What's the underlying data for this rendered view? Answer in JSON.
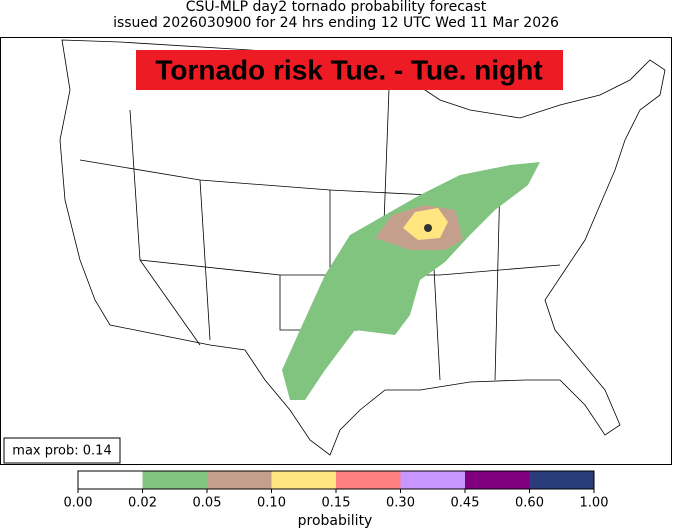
{
  "header": {
    "title": "CSU-MLP day2 tornado probability forecast",
    "subtitle": "issued 2026030900 for 24 hrs ending 12 UTC Wed 11 Mar 2026"
  },
  "banner": "Tornado risk Tue. - Tue. night",
  "max_prob": "max prob: 0.14",
  "colorbar": {
    "label": "probability",
    "ticks": [
      {
        "value": 0,
        "label": "0.00"
      },
      {
        "value": 0.02,
        "label": "0.02"
      },
      {
        "value": 0.05,
        "label": "0.05"
      },
      {
        "value": 0.1,
        "label": "0.10"
      },
      {
        "value": 0.15,
        "label": "0.15"
      },
      {
        "value": 0.3,
        "label": "0.30"
      },
      {
        "value": 0.45,
        "label": "0.45"
      },
      {
        "value": 0.6,
        "label": "0.60"
      },
      {
        "value": 1,
        "label": "1.00"
      }
    ],
    "colors": [
      "#ffffff",
      "#80c480",
      "#c4a08c",
      "#ffe680",
      "#ff8080",
      "#c896ff",
      "#800080",
      "#2a3d7a"
    ]
  }
}
